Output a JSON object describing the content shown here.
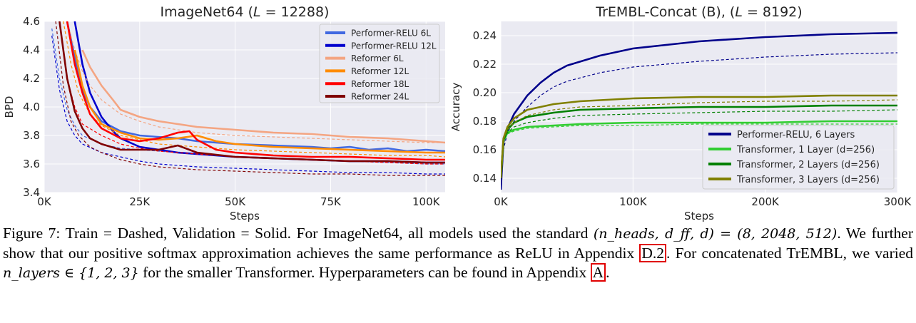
{
  "chart_data": [
    {
      "type": "line",
      "title": "ImageNet64 (L = 12288)",
      "title_parts": [
        "ImageNet64 (",
        "L",
        " = 12288)"
      ],
      "xlabel": "Steps",
      "ylabel": "BPD",
      "xlim": [
        0,
        105000
      ],
      "ylim": [
        3.4,
        4.6
      ],
      "xticks": [
        0,
        25000,
        50000,
        75000,
        100000
      ],
      "xtick_labels": [
        "0K",
        "25K",
        "50K",
        "75K",
        "100K"
      ],
      "yticks": [
        3.4,
        3.6,
        3.8,
        4.0,
        4.2,
        4.4,
        4.6
      ],
      "ytick_labels": [
        "3.4",
        "3.6",
        "3.8",
        "4.0",
        "4.2",
        "4.4",
        "4.6"
      ],
      "grid": true,
      "legend_position": "top-right",
      "series": [
        {
          "name": "Performer-RELU 6L",
          "color": "#4169e1",
          "train": {
            "x": [
              2000,
              4000,
              6000,
              8000,
              10000,
              15000,
              20000,
              25000,
              30000,
              40000,
              50000,
              60000,
              70000,
              80000,
              90000,
              100000,
              105000
            ],
            "y": [
              4.55,
              4.2,
              3.98,
              3.87,
              3.8,
              3.74,
              3.71,
              3.7,
              3.69,
              3.67,
              3.65,
              3.64,
              3.63,
              3.62,
              3.61,
              3.6,
              3.6
            ]
          },
          "validation": {
            "x": [
              6000,
              8000,
              10000,
              12000,
              15000,
              20000,
              25000,
              30000,
              35000,
              40000,
              50000,
              60000,
              70000,
              75000,
              80000,
              85000,
              90000,
              95000,
              100000,
              105000
            ],
            "y": [
              4.6,
              4.35,
              4.12,
              4.0,
              3.9,
              3.83,
              3.8,
              3.79,
              3.78,
              3.76,
              3.74,
              3.73,
              3.72,
              3.71,
              3.72,
              3.7,
              3.71,
              3.69,
              3.7,
              3.69
            ]
          }
        },
        {
          "name": "Performer-RELU 12L",
          "color": "#0000cd",
          "train": {
            "x": [
              2000,
              4000,
              6000,
              8000,
              10000,
              15000,
              20000,
              25000,
              30000,
              40000,
              50000,
              60000,
              70000,
              80000,
              90000,
              100000,
              105000
            ],
            "y": [
              4.5,
              4.12,
              3.9,
              3.8,
              3.74,
              3.68,
              3.65,
              3.62,
              3.6,
              3.58,
              3.57,
              3.56,
              3.55,
              3.54,
              3.54,
              3.53,
              3.53
            ]
          },
          "validation": {
            "x": [
              8000,
              10000,
              12000,
              15000,
              18000,
              20000,
              25000,
              30000,
              35000,
              40000,
              50000,
              60000,
              70000,
              80000,
              90000,
              100000,
              105000
            ],
            "y": [
              4.6,
              4.3,
              4.1,
              3.93,
              3.83,
              3.78,
              3.72,
              3.7,
              3.68,
              3.67,
              3.65,
              3.64,
              3.63,
              3.62,
              3.62,
              3.61,
              3.61
            ]
          }
        },
        {
          "name": "Reformer 6L",
          "color": "#f4a582",
          "train": {
            "x": [
              6000,
              8000,
              10000,
              12000,
              15000,
              20000,
              25000,
              30000,
              40000,
              50000,
              60000,
              70000,
              80000,
              90000,
              100000,
              105000
            ],
            "y": [
              4.6,
              4.4,
              4.25,
              4.15,
              4.05,
              3.95,
              3.9,
              3.86,
              3.82,
              3.8,
              3.79,
              3.78,
              3.77,
              3.76,
              3.75,
              3.75
            ]
          },
          "validation": {
            "x": [
              10000,
              12000,
              15000,
              18000,
              20000,
              25000,
              30000,
              35000,
              40000,
              50000,
              60000,
              70000,
              80000,
              90000,
              95000,
              100000,
              105000
            ],
            "y": [
              4.4,
              4.28,
              4.15,
              4.05,
              3.98,
              3.93,
              3.9,
              3.88,
              3.86,
              3.84,
              3.82,
              3.81,
              3.79,
              3.78,
              3.77,
              3.76,
              3.75
            ]
          }
        },
        {
          "name": "Reformer 12L",
          "color": "#ff8c00",
          "train": {
            "x": [
              5000,
              7000,
              9000,
              12000,
              15000,
              20000,
              25000,
              30000,
              40000,
              50000,
              60000,
              70000,
              80000,
              90000,
              100000,
              105000
            ],
            "y": [
              4.6,
              4.3,
              4.1,
              3.95,
              3.87,
              3.8,
              3.77,
              3.74,
              3.72,
              3.7,
              3.69,
              3.68,
              3.67,
              3.66,
              3.66,
              3.65
            ]
          },
          "validation": {
            "x": [
              8000,
              10000,
              12000,
              15000,
              20000,
              25000,
              30000,
              35000,
              40000,
              45000,
              50000,
              60000,
              70000,
              80000,
              90000,
              100000,
              105000
            ],
            "y": [
              4.4,
              4.15,
              4.0,
              3.88,
              3.82,
              3.78,
              3.77,
              3.78,
              3.8,
              3.76,
              3.74,
              3.72,
              3.71,
              3.7,
              3.69,
              3.68,
              3.68
            ]
          }
        },
        {
          "name": "Reformer 18L",
          "color": "#ff0000",
          "train": {
            "x": [
              4000,
              6000,
              8000,
              10000,
              15000,
              20000,
              25000,
              30000,
              40000,
              50000,
              60000,
              70000,
              80000,
              90000,
              100000,
              105000
            ],
            "y": [
              4.6,
              4.2,
              4.0,
              3.88,
              3.8,
              3.74,
              3.71,
              3.69,
              3.67,
              3.65,
              3.64,
              3.63,
              3.62,
              3.61,
              3.6,
              3.6
            ]
          },
          "validation": {
            "x": [
              6000,
              8000,
              10000,
              12000,
              15000,
              20000,
              25000,
              30000,
              35000,
              38000,
              40000,
              45000,
              50000,
              60000,
              70000,
              80000,
              90000,
              100000,
              105000
            ],
            "y": [
              4.6,
              4.3,
              4.1,
              3.95,
              3.85,
              3.78,
              3.76,
              3.78,
              3.82,
              3.83,
              3.77,
              3.7,
              3.68,
              3.66,
              3.65,
              3.65,
              3.64,
              3.63,
              3.63
            ]
          }
        },
        {
          "name": "Reformer 24L",
          "color": "#800000",
          "train": {
            "x": [
              3000,
              5000,
              7000,
              9000,
              12000,
              15000,
              20000,
              25000,
              30000,
              40000,
              50000,
              60000,
              70000,
              80000,
              90000,
              100000,
              105000
            ],
            "y": [
              4.6,
              4.15,
              3.9,
              3.8,
              3.72,
              3.68,
              3.63,
              3.6,
              3.58,
              3.56,
              3.55,
              3.54,
              3.53,
              3.53,
              3.52,
              3.52,
              3.52
            ]
          },
          "validation": {
            "x": [
              4000,
              6000,
              8000,
              10000,
              12000,
              15000,
              20000,
              25000,
              30000,
              35000,
              40000,
              50000,
              60000,
              70000,
              80000,
              90000,
              100000,
              105000
            ],
            "y": [
              4.6,
              4.2,
              3.97,
              3.85,
              3.78,
              3.74,
              3.7,
              3.7,
              3.7,
              3.73,
              3.68,
              3.65,
              3.64,
              3.63,
              3.62,
              3.62,
              3.61,
              3.61
            ]
          }
        }
      ]
    },
    {
      "type": "line",
      "title": "TrEMBL-Concat (B), (L = 8192)",
      "title_parts": [
        "TrEMBL-Concat (B), (",
        "L",
        " = 8192)"
      ],
      "xlabel": "Steps",
      "ylabel": "Accuracy",
      "xlim": [
        0,
        300000
      ],
      "ylim": [
        0.13,
        0.25
      ],
      "xticks": [
        0,
        100000,
        200000,
        300000
      ],
      "xtick_labels": [
        "0K",
        "100K",
        "200K",
        "300K"
      ],
      "yticks": [
        0.14,
        0.16,
        0.18,
        0.2,
        0.22,
        0.24
      ],
      "ytick_labels": [
        "0.14",
        "0.16",
        "0.18",
        "0.20",
        "0.22",
        "0.24"
      ],
      "grid": true,
      "legend_position": "bottom-right",
      "series": [
        {
          "name": "Performer-RELU, 6 Layers",
          "color": "#00008b",
          "train": {
            "x": [
              0,
              2000,
              5000,
              10000,
              20000,
              30000,
              40000,
              50000,
              75000,
              100000,
              150000,
              200000,
              250000,
              300000
            ],
            "y": [
              0.135,
              0.16,
              0.172,
              0.18,
              0.19,
              0.198,
              0.204,
              0.208,
              0.214,
              0.218,
              0.222,
              0.225,
              0.227,
              0.228
            ]
          },
          "validation": {
            "x": [
              0,
              2000,
              5000,
              10000,
              20000,
              30000,
              40000,
              50000,
              75000,
              100000,
              150000,
              200000,
              250000,
              300000
            ],
            "y": [
              0.132,
              0.165,
              0.175,
              0.185,
              0.198,
              0.207,
              0.214,
              0.219,
              0.226,
              0.231,
              0.236,
              0.239,
              0.241,
              0.242
            ]
          }
        },
        {
          "name": "Transformer, 1 Layer (d=256)",
          "color": "#32cd32",
          "train": {
            "x": [
              0,
              2000,
              5000,
              10000,
              20000,
              40000,
              60000,
              100000,
              150000,
              200000,
              250000,
              300000
            ],
            "y": [
              0.14,
              0.165,
              0.171,
              0.173,
              0.175,
              0.176,
              0.177,
              0.177,
              0.178,
              0.178,
              0.178,
              0.178
            ]
          },
          "validation": {
            "x": [
              0,
              2000,
              5000,
              10000,
              20000,
              40000,
              60000,
              100000,
              150000,
              200000,
              250000,
              300000
            ],
            "y": [
              0.14,
              0.166,
              0.172,
              0.174,
              0.176,
              0.177,
              0.178,
              0.179,
              0.179,
              0.179,
              0.18,
              0.18
            ]
          }
        },
        {
          "name": "Transformer, 2 Layers (d=256)",
          "color": "#008000",
          "train": {
            "x": [
              0,
              2000,
              5000,
              10000,
              20000,
              40000,
              60000,
              100000,
              150000,
              200000,
              250000,
              300000
            ],
            "y": [
              0.14,
              0.166,
              0.172,
              0.176,
              0.179,
              0.182,
              0.184,
              0.185,
              0.186,
              0.187,
              0.187,
              0.188
            ]
          },
          "validation": {
            "x": [
              0,
              2000,
              5000,
              10000,
              20000,
              40000,
              60000,
              100000,
              150000,
              200000,
              250000,
              300000
            ],
            "y": [
              0.14,
              0.167,
              0.174,
              0.179,
              0.183,
              0.186,
              0.188,
              0.189,
              0.19,
              0.19,
              0.191,
              0.191
            ]
          }
        },
        {
          "name": "Transformer, 3 Layers (d=256)",
          "color": "#808000",
          "train": {
            "x": [
              0,
              2000,
              5000,
              10000,
              20000,
              40000,
              60000,
              100000,
              150000,
              200000,
              250000,
              300000
            ],
            "y": [
              0.14,
              0.167,
              0.174,
              0.179,
              0.184,
              0.188,
              0.19,
              0.191,
              0.193,
              0.194,
              0.194,
              0.195
            ]
          },
          "validation": {
            "x": [
              0,
              2000,
              5000,
              10000,
              20000,
              40000,
              60000,
              100000,
              150000,
              200000,
              250000,
              300000
            ],
            "y": [
              0.14,
              0.168,
              0.176,
              0.182,
              0.188,
              0.192,
              0.194,
              0.196,
              0.197,
              0.197,
              0.198,
              0.198
            ]
          }
        }
      ]
    }
  ],
  "caption": {
    "label": "Figure 7:",
    "sentence1": "Train = Dashed, Validation = Solid. For ImageNet64, all models used the standard",
    "math1": "(n_heads, d_ff, d) = (8, 2048, 512)",
    "sentence2": ". We further show that our positive softmax approximation achieves the same performance as ReLU in Appendix",
    "ref1": "D.2",
    "sentence3": ". For concatenated TrEMBL, we varied",
    "math2": "n_layers ∈ {1, 2, 3}",
    "sentence4": "for the smaller Transformer. Hyperparameters can be found in Appendix",
    "ref2": "A",
    "sentence5": "."
  }
}
